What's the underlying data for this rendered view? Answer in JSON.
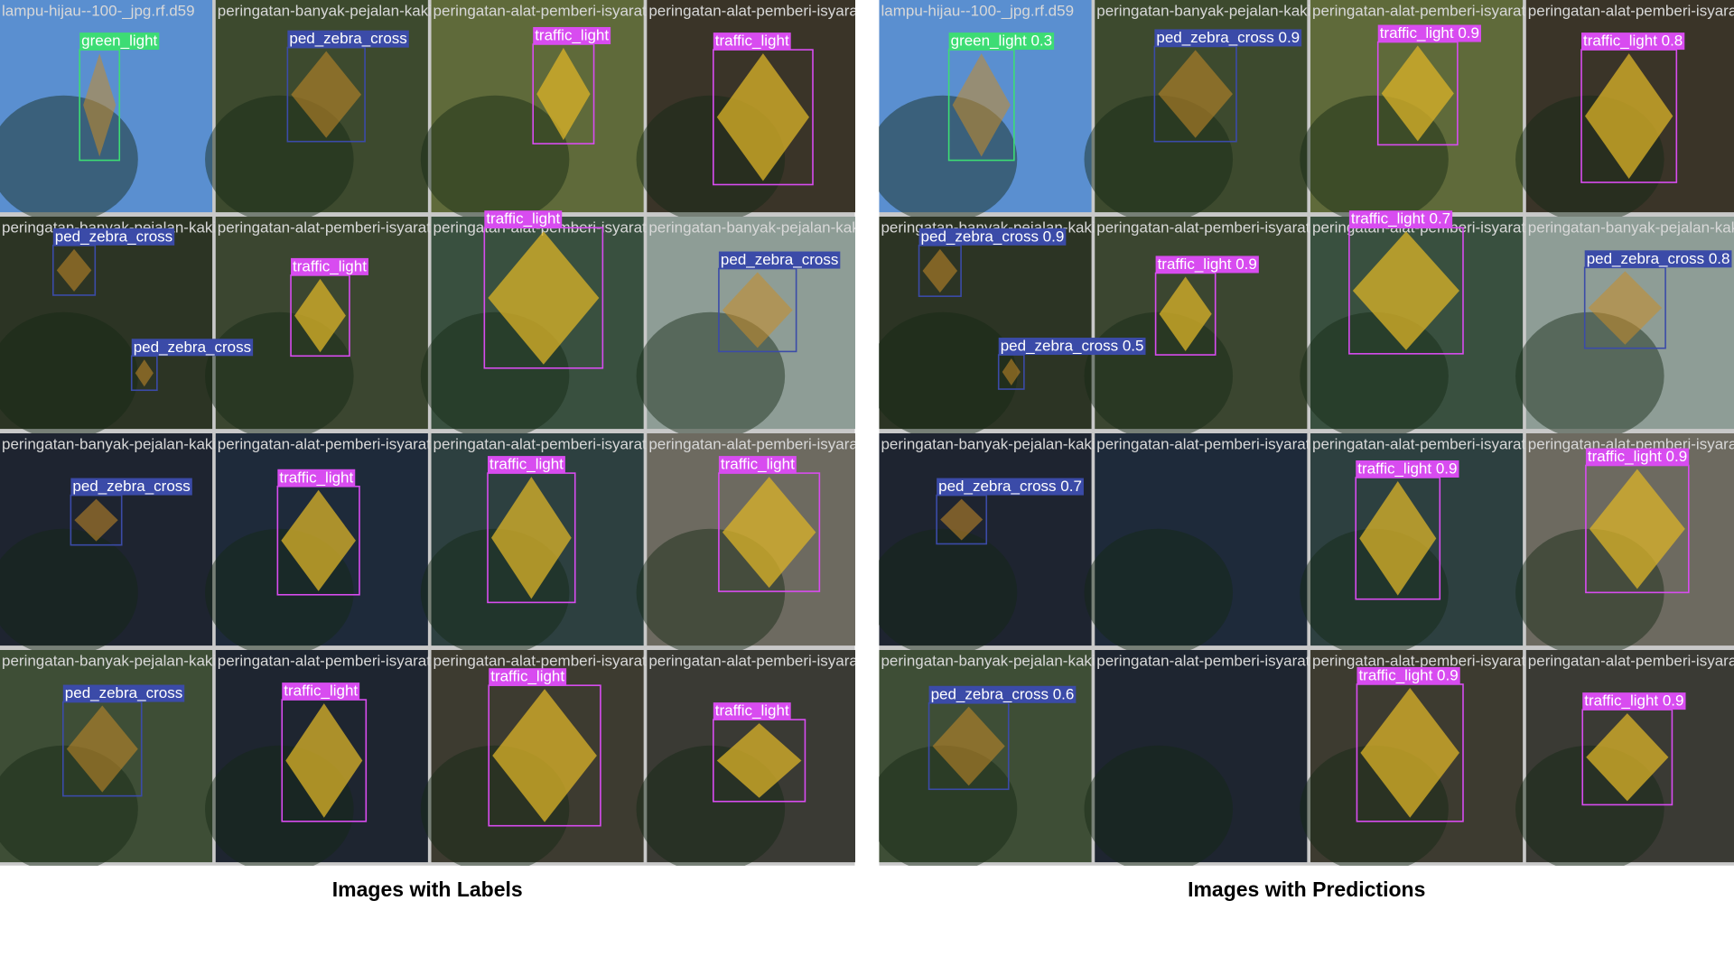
{
  "panels": [
    {
      "caption": "Images with Labels",
      "cells": [
        {
          "file": "lampu-hijau--100-_jpg.rf.d59",
          "boxes": [
            "green_light"
          ]
        },
        {
          "file": "peringatan-banyak-pejalan-kaki",
          "boxes": [
            "ped_zebra_cross"
          ]
        },
        {
          "file": "peringatan-alat-pemberi-isyarat",
          "boxes": [
            "traffic_light"
          ]
        },
        {
          "file": "peringatan-alat-pemberi-isyarat",
          "boxes": [
            "traffic_light"
          ]
        },
        {
          "file": "peringatan-banyak-pejalan-kaki",
          "boxes": [
            "ped_zebra_cross",
            "ped_zebra_cross"
          ]
        },
        {
          "file": "peringatan-alat-pemberi-isyarat",
          "boxes": [
            "traffic_light"
          ]
        },
        {
          "file": "peringatan-alat-pemberi-isyarat",
          "boxes": [
            "traffic_light"
          ]
        },
        {
          "file": "peringatan-banyak-pejalan-kaki",
          "boxes": [
            "ped_zebra_cross"
          ]
        },
        {
          "file": "peringatan-banyak-pejalan-kaki",
          "boxes": [
            "ped_zebra_cross"
          ]
        },
        {
          "file": "peringatan-alat-pemberi-isyarat",
          "boxes": [
            "traffic_light"
          ]
        },
        {
          "file": "peringatan-alat-pemberi-isyarat",
          "boxes": [
            "traffic_light"
          ]
        },
        {
          "file": "peringatan-alat-pemberi-isyarat",
          "boxes": [
            "traffic_light"
          ]
        },
        {
          "file": "peringatan-banyak-pejalan-kaki",
          "boxes": [
            "ped_zebra_cross"
          ]
        },
        {
          "file": "peringatan-alat-pemberi-isyarat",
          "boxes": [
            "traffic_light"
          ]
        },
        {
          "file": "peringatan-alat-pemberi-isyarat",
          "boxes": [
            "traffic_light"
          ]
        },
        {
          "file": "peringatan-alat-pemberi-isyarat",
          "boxes": [
            "traffic_light"
          ]
        }
      ]
    },
    {
      "caption": "Images with Predictions",
      "cells": [
        {
          "file": "lampu-hijau--100-_jpg.rf.d59",
          "boxes": [
            "green_light 0.3"
          ]
        },
        {
          "file": "peringatan-banyak-pejalan-kaki",
          "boxes": [
            "ped_zebra_cross 0.9"
          ]
        },
        {
          "file": "peringatan-alat-pemberi-isyarat",
          "boxes": [
            "traffic_light 0.9"
          ]
        },
        {
          "file": "peringatan-alat-pemberi-isyarat",
          "boxes": [
            "traffic_light 0.8"
          ]
        },
        {
          "file": "peringatan-banyak-pejalan-kaki",
          "boxes": [
            "ped_zebra_cross 0.9",
            "ped_zebra_cross 0.5"
          ]
        },
        {
          "file": "peringatan-alat-pemberi-isyarat",
          "boxes": [
            "traffic_light 0.9"
          ]
        },
        {
          "file": "peringatan-alat-pemberi-isyarat",
          "boxes": [
            "traffic_light 0.7"
          ]
        },
        {
          "file": "peringatan-banyak-pejalan-kaki",
          "boxes": [
            "ped_zebra_cross 0.8"
          ]
        },
        {
          "file": "peringatan-banyak-pejalan-kaki",
          "boxes": [
            "ped_zebra_cross 0.7"
          ]
        },
        {
          "file": "peringatan-alat-pemberi-isyarat",
          "boxes": []
        },
        {
          "file": "peringatan-alat-pemberi-isyarat",
          "boxes": [
            "traffic_light 0.9"
          ]
        },
        {
          "file": "peringatan-alat-pemberi-isyarat",
          "boxes": [
            "traffic_light 0.9"
          ]
        },
        {
          "file": "peringatan-banyak-pejalan-kaki",
          "boxes": [
            "ped_zebra_cross 0.6"
          ]
        },
        {
          "file": "peringatan-alat-pemberi-isyarat",
          "boxes": []
        },
        {
          "file": "peringatan-alat-pemberi-isyarat",
          "boxes": [
            "traffic_light 0.9"
          ]
        },
        {
          "file": "peringatan-alat-pemberi-isyarat",
          "boxes": [
            "traffic_light 0.9"
          ]
        }
      ]
    }
  ]
}
